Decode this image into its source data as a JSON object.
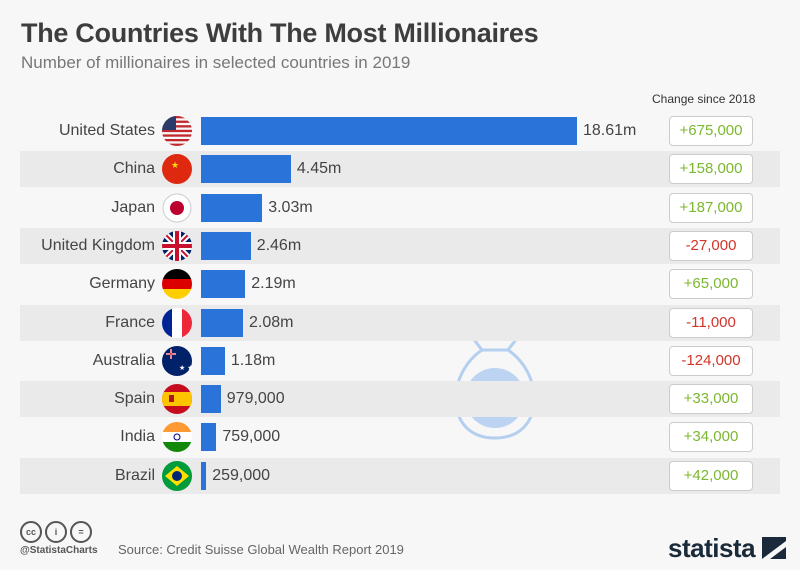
{
  "chart_data": {
    "type": "bar",
    "orientation": "horizontal",
    "title": "The Countries With The Most Millionaires",
    "subtitle": "Number of millionaires in selected countries in 2019",
    "categories": [
      "United States",
      "China",
      "Japan",
      "United Kingdom",
      "Germany",
      "France",
      "Australia",
      "Spain",
      "India",
      "Brazil"
    ],
    "values": [
      18610000,
      4450000,
      3030000,
      2460000,
      2190000,
      2080000,
      1180000,
      979000,
      759000,
      259000
    ],
    "value_labels": [
      "18.61m",
      "4.45m",
      "3.03m",
      "2.46m",
      "2.19m",
      "2.08m",
      "1.18m",
      "979,000",
      "759,000",
      "259,000"
    ],
    "change_header": "Change since 2018",
    "changes": [
      "+675,000",
      "+158,000",
      "+187,000",
      "-27,000",
      "+65,000",
      "-11,000",
      "-124,000",
      "+33,000",
      "+34,000",
      "+42,000"
    ],
    "flags": [
      "us-flag",
      "china-flag",
      "japan-flag",
      "uk-flag",
      "germany-flag",
      "france-flag",
      "australia-flag",
      "spain-flag",
      "india-flag",
      "brazil-flag"
    ],
    "colors": {
      "bar": "#2a74d9",
      "positive": "#7cb82f",
      "negative": "#d0352b"
    },
    "grid": false
  },
  "footer": {
    "handle": "@StatistaCharts",
    "source": "Source: Credit Suisse Global Wealth Report 2019",
    "logo": "statista",
    "license_icons": [
      "cc-icon",
      "by-icon",
      "nd-icon"
    ]
  }
}
